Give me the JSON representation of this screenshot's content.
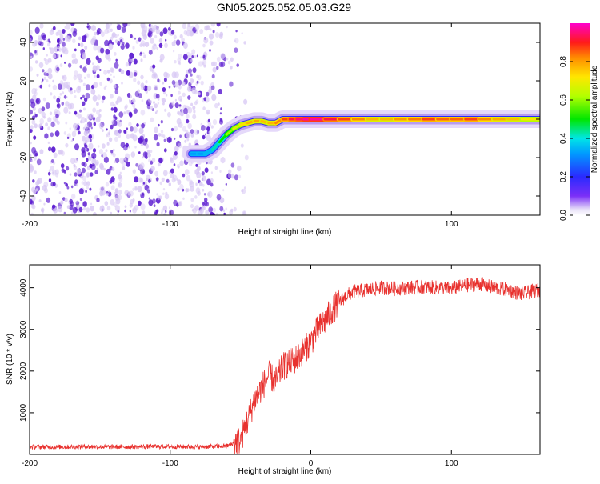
{
  "title": "GN05.2025.052.05.03.G29",
  "colors": {
    "snr_line": "#e8312e",
    "frame": "#000000",
    "speckle_light": "#d8c8f4",
    "speckle_dark": "#5a1ad0"
  },
  "chart_data": [
    {
      "type": "heatmap",
      "xlabel": "Height of straight line (km)",
      "ylabel": "Frequency (Hz)",
      "xlim": [
        -200,
        163
      ],
      "ylim": [
        -50,
        50
      ],
      "x_ticks": [
        -200,
        -100,
        0,
        100
      ],
      "x_tick_labels": [
        "-200",
        "-100",
        "",
        "100"
      ],
      "y_ticks": [
        -40,
        -20,
        0,
        20,
        40
      ],
      "y_tick_labels": [
        "-40",
        "-20",
        "0",
        "20",
        "40"
      ],
      "colorbar": {
        "label": "Normalized spectral amplitude",
        "range": [
          0,
          1
        ],
        "ticks": [
          0.0,
          0.2,
          0.4,
          0.6,
          0.8
        ],
        "tick_labels": [
          "0.0",
          "0.2",
          "0.4",
          "0.6",
          "0.8"
        ]
      },
      "noise_region_x": [
        -200,
        -50
      ],
      "signal_track": {
        "x": [
          -85,
          -80,
          -75,
          -70,
          -65,
          -60,
          -55,
          -50,
          -45,
          -40,
          -35,
          -30,
          -25,
          -20,
          -15,
          -10,
          -5,
          0,
          10,
          20,
          30,
          40,
          50,
          60,
          70,
          80,
          90,
          100,
          110,
          120,
          130,
          140,
          150,
          163
        ],
        "freq": [
          -18,
          -18,
          -18,
          -16,
          -12,
          -8,
          -5,
          -3,
          -2,
          -1,
          -1,
          -2,
          -2,
          0,
          0,
          0,
          0,
          0,
          0,
          0,
          0,
          0,
          0,
          0,
          0,
          0,
          0,
          0,
          0,
          0,
          0,
          0,
          0,
          0
        ],
        "amplitude": [
          0.3,
          0.35,
          0.3,
          0.4,
          0.45,
          0.55,
          0.65,
          0.7,
          0.75,
          0.8,
          0.78,
          0.75,
          0.8,
          0.85,
          0.9,
          0.95,
          0.95,
          1.0,
          0.95,
          0.9,
          0.85,
          0.8,
          0.75,
          0.8,
          0.82,
          0.85,
          0.9,
          0.8,
          0.9,
          0.85,
          0.8,
          0.78,
          0.75,
          0.7
        ]
      }
    },
    {
      "type": "line",
      "xlabel": "Height of straight line (km)",
      "ylabel": "SNR (10 * v/v)",
      "xlim": [
        -200,
        163
      ],
      "ylim": [
        0,
        4550
      ],
      "x_ticks": [
        -200,
        -100,
        0,
        100
      ],
      "x_tick_labels": [
        "-200",
        "-100",
        "0",
        "100"
      ],
      "y_ticks": [
        1000,
        2000,
        3000,
        4000
      ],
      "y_tick_labels": [
        "1000",
        "2000",
        "3000",
        "4000"
      ],
      "series": [
        {
          "x": [
            -200,
            -180,
            -160,
            -140,
            -120,
            -100,
            -80,
            -60,
            -55,
            -50,
            -45,
            -40,
            -35,
            -30,
            -25,
            -20,
            -15,
            -10,
            -5,
            0,
            5,
            10,
            15,
            20,
            25,
            30,
            40,
            50,
            60,
            70,
            80,
            90,
            100,
            110,
            120,
            130,
            140,
            150,
            163
          ],
          "y": [
            180,
            180,
            185,
            180,
            185,
            190,
            180,
            200,
            260,
            350,
            800,
            1300,
            1600,
            1900,
            1750,
            2100,
            2200,
            2300,
            2500,
            2700,
            3000,
            3200,
            3450,
            3650,
            3800,
            3900,
            3950,
            4000,
            3980,
            4000,
            4020,
            4000,
            3980,
            4050,
            4100,
            4000,
            3950,
            3850,
            3950
          ]
        }
      ]
    }
  ]
}
